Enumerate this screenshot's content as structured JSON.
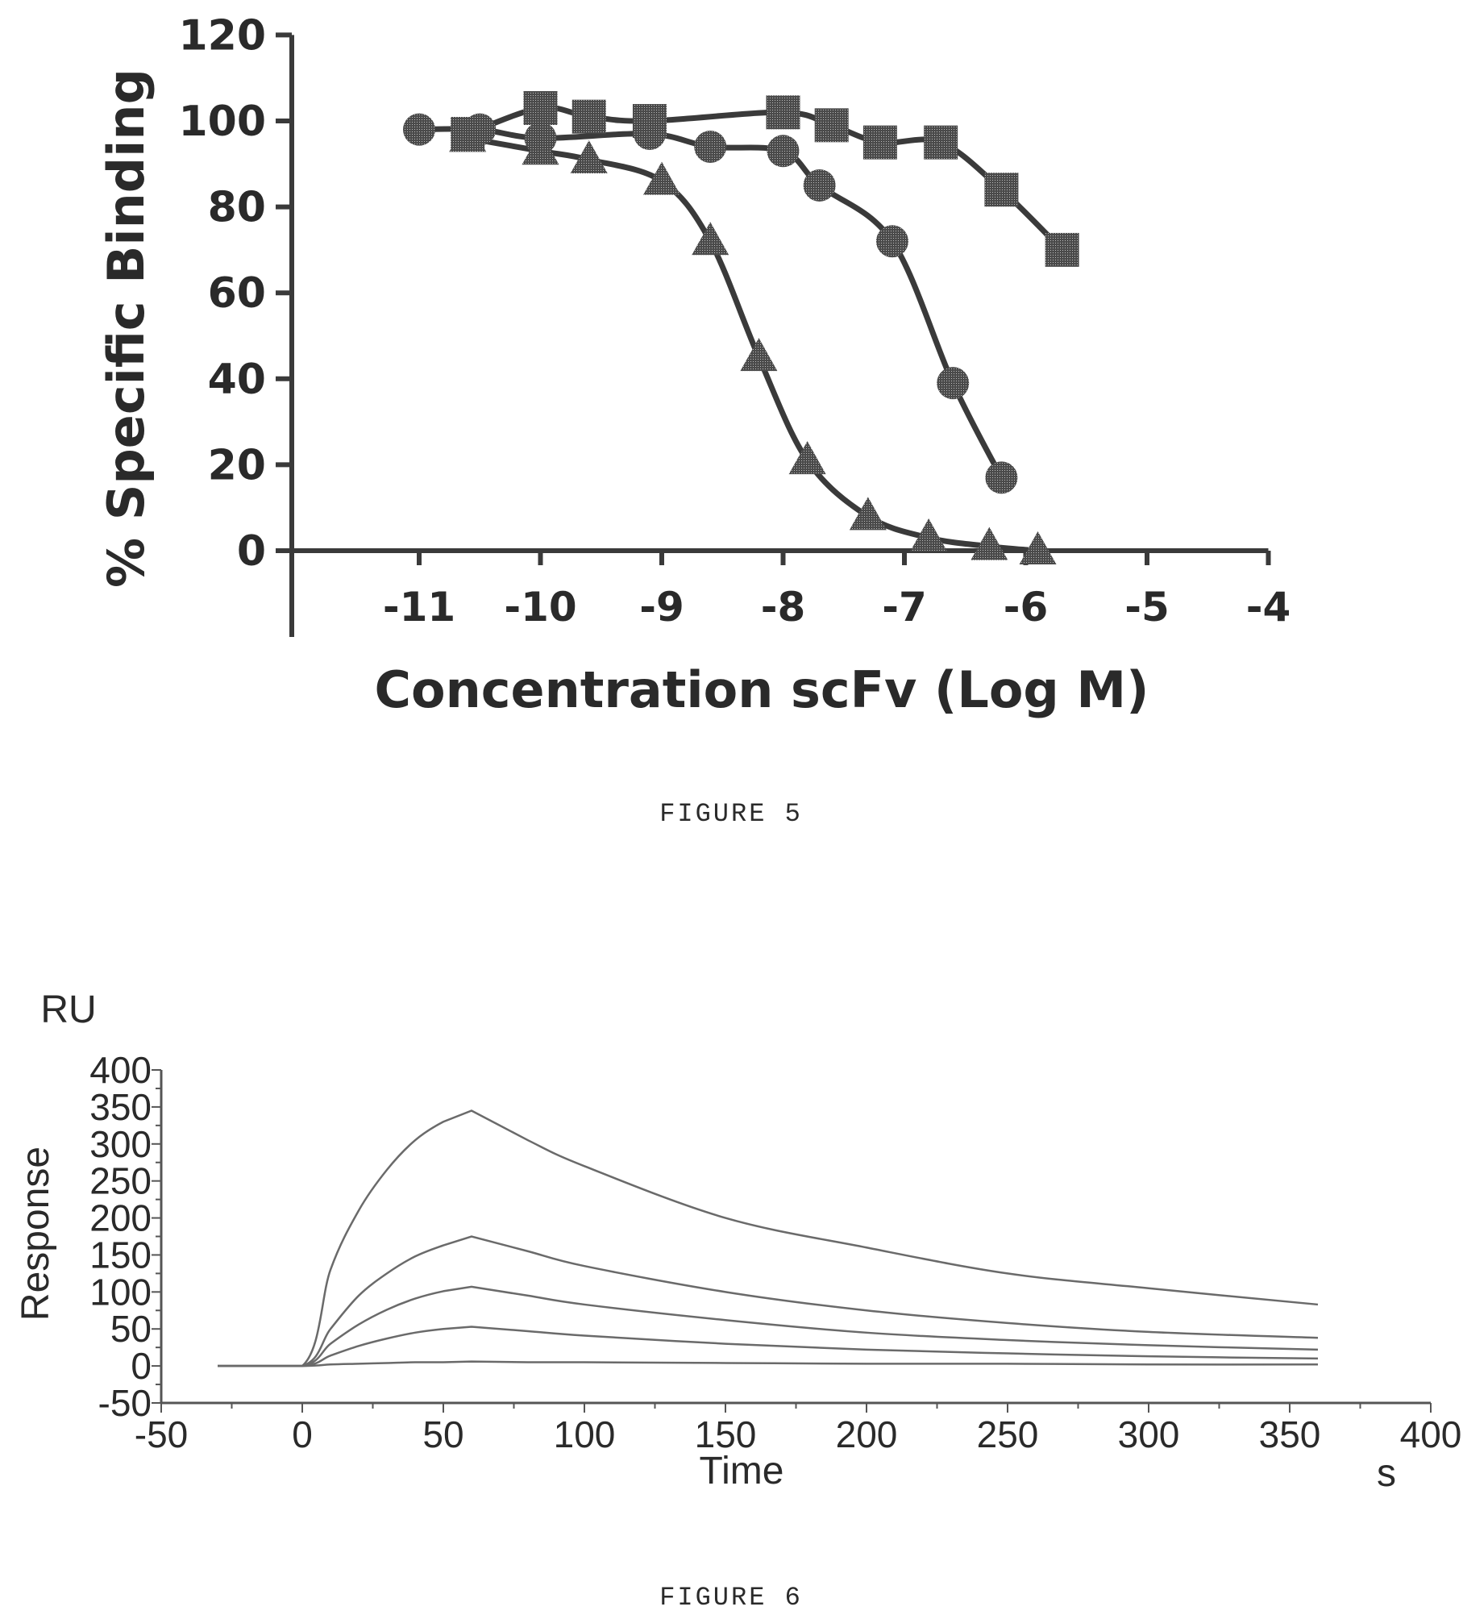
{
  "chart_data": [
    {
      "type": "scatter",
      "caption": "FIGURE 5",
      "xlabel": "Concentration scFv (Log M)",
      "ylabel": "% Specific Binding",
      "xlim": [
        -12,
        -4
      ],
      "ylim": [
        -20,
        120
      ],
      "xticks": [
        -11,
        -10,
        -9,
        -8,
        -7,
        -6,
        -5,
        -4
      ],
      "xtick_labels": [
        "-11",
        "-10",
        "-9",
        "-8",
        "-7",
        "-6",
        "-5",
        "-4"
      ],
      "yticks": [
        0,
        20,
        40,
        60,
        80,
        100,
        120
      ],
      "ytick_labels": [
        "0",
        "20",
        "40",
        "60",
        "80",
        "100",
        "120"
      ],
      "grid": false,
      "fitted_curves": true,
      "series": [
        {
          "marker": "square",
          "x": [
            -10.6,
            -10.0,
            -9.6,
            -9.1,
            -8.0,
            -7.6,
            -7.2,
            -6.7,
            -6.2,
            -5.7
          ],
          "y": [
            97,
            103,
            101,
            100,
            102,
            99,
            95,
            95,
            84,
            70
          ]
        },
        {
          "marker": "circle",
          "x": [
            -11.0,
            -10.5,
            -10.0,
            -9.1,
            -8.6,
            -8.0,
            -7.7,
            -7.1,
            -6.6,
            -6.2
          ],
          "y": [
            98,
            98,
            96,
            97,
            94,
            93,
            85,
            72,
            39,
            17
          ]
        },
        {
          "marker": "triangle",
          "x": [
            -10.6,
            -10.0,
            -9.6,
            -9.0,
            -8.6,
            -8.2,
            -7.8,
            -7.3,
            -6.8,
            -6.3,
            -5.9
          ],
          "y": [
            96,
            93,
            91,
            86,
            72,
            45,
            21,
            8,
            3,
            1,
            0
          ]
        }
      ]
    },
    {
      "type": "line",
      "caption": "FIGURE 6",
      "xlabel": "Time",
      "xunit": "s",
      "ylabel": "Response",
      "yunit": "RU",
      "xlim": [
        -50,
        400
      ],
      "ylim": [
        -50,
        400
      ],
      "xticks": [
        -50,
        0,
        50,
        100,
        150,
        200,
        250,
        300,
        350,
        400
      ],
      "xtick_labels": [
        "-50",
        "0",
        "50",
        "100",
        "150",
        "200",
        "250",
        "300",
        "350",
        "400"
      ],
      "yticks": [
        -50,
        0,
        50,
        100,
        150,
        200,
        250,
        300,
        350,
        400
      ],
      "ytick_labels": [
        "-50",
        "0",
        "50",
        "100",
        "150",
        "200",
        "250",
        "300",
        "350",
        "400"
      ],
      "grid": false,
      "series": [
        {
          "x": [
            -30,
            0,
            10,
            20,
            30,
            40,
            50,
            60,
            80,
            100,
            150,
            200,
            250,
            300,
            360
          ],
          "y": [
            0,
            0,
            130,
            210,
            265,
            305,
            330,
            345,
            305,
            270,
            200,
            160,
            125,
            105,
            83
          ]
        },
        {
          "x": [
            -30,
            0,
            10,
            20,
            30,
            40,
            50,
            60,
            80,
            100,
            150,
            200,
            250,
            300,
            360
          ],
          "y": [
            0,
            0,
            50,
            95,
            125,
            148,
            163,
            175,
            155,
            135,
            100,
            75,
            58,
            46,
            38
          ]
        },
        {
          "x": [
            -30,
            0,
            10,
            20,
            30,
            40,
            50,
            60,
            80,
            100,
            150,
            200,
            250,
            300,
            360
          ],
          "y": [
            0,
            0,
            30,
            56,
            76,
            91,
            101,
            107,
            95,
            83,
            62,
            45,
            35,
            28,
            22
          ]
        },
        {
          "x": [
            -30,
            0,
            10,
            20,
            30,
            40,
            50,
            60,
            80,
            100,
            150,
            200,
            250,
            300,
            360
          ],
          "y": [
            0,
            0,
            14,
            27,
            37,
            45,
            50,
            53,
            47,
            41,
            30,
            22,
            17,
            13,
            10
          ]
        },
        {
          "x": [
            -30,
            0,
            10,
            20,
            30,
            40,
            50,
            60,
            80,
            100,
            150,
            200,
            250,
            300,
            360
          ],
          "y": [
            0,
            0,
            2,
            3,
            4,
            5,
            5,
            6,
            5,
            5,
            4,
            3,
            3,
            2,
            2
          ]
        }
      ]
    }
  ]
}
